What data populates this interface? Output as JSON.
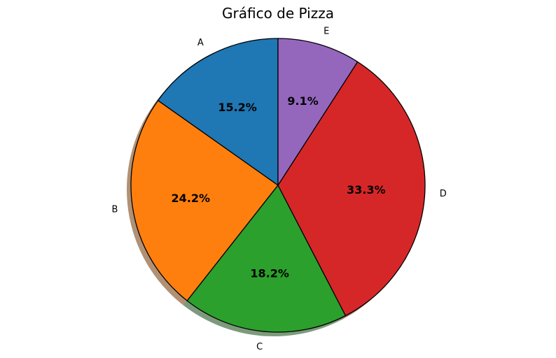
{
  "chart_data": {
    "type": "pie",
    "title": "Gráfico de Pizza",
    "categories": [
      "A",
      "B",
      "C",
      "D",
      "E"
    ],
    "values": [
      15.2,
      24.2,
      18.2,
      33.3,
      9.1
    ],
    "percent_labels": [
      "15.2%",
      "24.2%",
      "18.2%",
      "33.3%",
      "9.1%"
    ],
    "colors": [
      "#1f77b4",
      "#ff7f0e",
      "#2ca02c",
      "#d62728",
      "#9467bd"
    ],
    "start_angle_deg": 90,
    "direction": "counterclockwise",
    "shadow": true,
    "edge_color": "#000000"
  }
}
